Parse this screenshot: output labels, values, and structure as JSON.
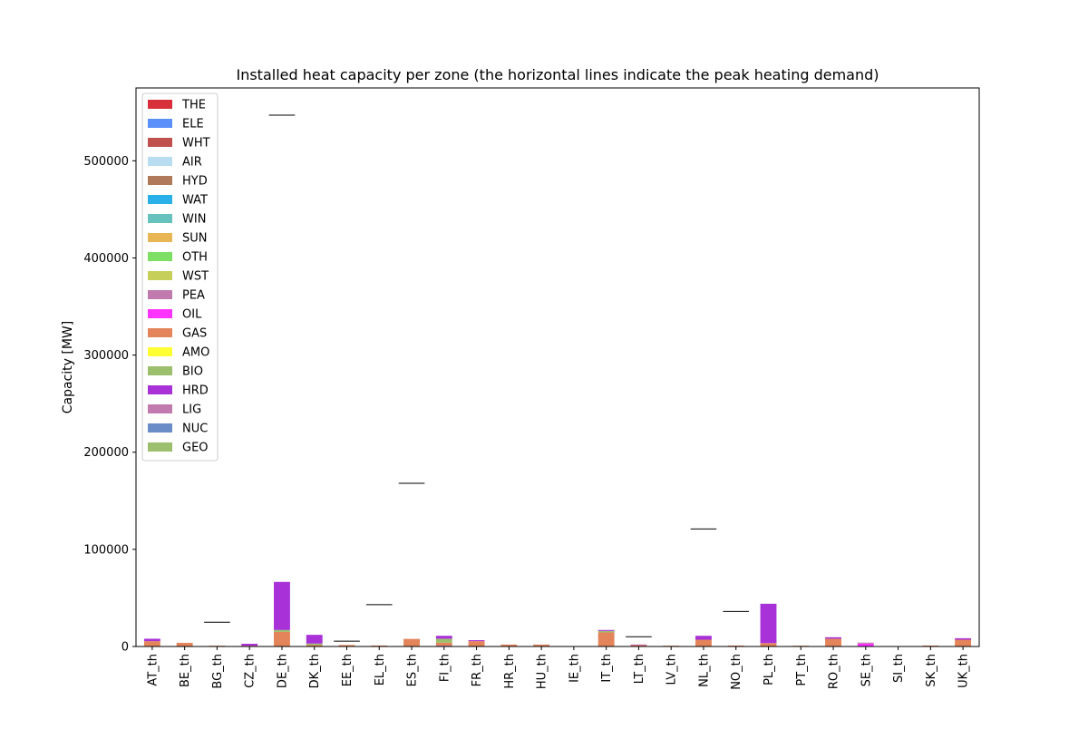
{
  "chart_data": {
    "type": "bar",
    "stacked": true,
    "title": "Installed heat capacity per zone (the horizontal lines indicate the peak heating demand)",
    "xlabel": "",
    "ylabel": "Capacity [MW]",
    "ylim": [
      0,
      575000
    ],
    "yticks": [
      0,
      100000,
      200000,
      300000,
      400000,
      500000
    ],
    "ytick_labels": [
      "0",
      "100000",
      "200000",
      "300000",
      "400000",
      "500000"
    ],
    "grid": false,
    "legend_position": "top-left",
    "categories": [
      "AT_th",
      "BE_th",
      "BG_th",
      "CZ_th",
      "DE_th",
      "DK_th",
      "EE_th",
      "EL_th",
      "ES_th",
      "FI_th",
      "FR_th",
      "HR_th",
      "HU_th",
      "IE_th",
      "IT_th",
      "LT_th",
      "LV_th",
      "NL_th",
      "NO_th",
      "PL_th",
      "PT_th",
      "RO_th",
      "SE_th",
      "SI_th",
      "SK_th",
      "UK_th"
    ],
    "series": [
      {
        "name": "THE",
        "color": "#d7303a",
        "values": [
          0,
          0,
          0,
          0,
          0,
          0,
          0,
          0,
          0,
          0,
          0,
          0,
          0,
          0,
          0,
          0,
          0,
          0,
          0,
          0,
          0,
          0,
          0,
          0,
          0,
          0
        ]
      },
      {
        "name": "ELE",
        "color": "#5b8ff9",
        "values": [
          0,
          0,
          0,
          0,
          0,
          0,
          0,
          0,
          0,
          0,
          0,
          0,
          0,
          0,
          0,
          0,
          0,
          0,
          0,
          0,
          0,
          0,
          0,
          0,
          0,
          0
        ]
      },
      {
        "name": "WHT",
        "color": "#c0504d",
        "values": [
          0,
          0,
          0,
          0,
          0,
          0,
          0,
          0,
          0,
          0,
          0,
          0,
          0,
          0,
          0,
          0,
          0,
          0,
          0,
          0,
          0,
          0,
          0,
          0,
          0,
          0
        ]
      },
      {
        "name": "AIR",
        "color": "#b8dcf0",
        "values": [
          0,
          0,
          0,
          0,
          0,
          0,
          0,
          0,
          0,
          0,
          0,
          0,
          0,
          0,
          0,
          0,
          0,
          0,
          0,
          0,
          0,
          0,
          0,
          0,
          0,
          0
        ]
      },
      {
        "name": "HYD",
        "color": "#b07a5a",
        "values": [
          0,
          0,
          0,
          0,
          0,
          0,
          0,
          0,
          0,
          0,
          0,
          0,
          0,
          0,
          0,
          0,
          0,
          0,
          0,
          0,
          0,
          0,
          0,
          0,
          0,
          0
        ]
      },
      {
        "name": "WAT",
        "color": "#2ab0e8",
        "values": [
          0,
          0,
          0,
          0,
          0,
          0,
          0,
          0,
          0,
          0,
          0,
          0,
          0,
          0,
          0,
          0,
          0,
          0,
          0,
          0,
          0,
          0,
          0,
          0,
          0,
          0
        ]
      },
      {
        "name": "WIN",
        "color": "#67c2bd",
        "values": [
          0,
          0,
          0,
          0,
          0,
          0,
          0,
          0,
          0,
          0,
          0,
          0,
          0,
          0,
          0,
          0,
          0,
          0,
          0,
          0,
          0,
          0,
          0,
          0,
          0,
          0
        ]
      },
      {
        "name": "SUN",
        "color": "#e8b654",
        "values": [
          0,
          0,
          0,
          0,
          0,
          0,
          0,
          0,
          0,
          0,
          0,
          0,
          0,
          0,
          0,
          0,
          0,
          0,
          0,
          0,
          0,
          0,
          0,
          0,
          0,
          0
        ]
      },
      {
        "name": "OTH",
        "color": "#7ddf64",
        "values": [
          0,
          0,
          0,
          0,
          0,
          0,
          0,
          0,
          0,
          0,
          0,
          0,
          0,
          0,
          0,
          0,
          0,
          0,
          0,
          0,
          0,
          0,
          0,
          0,
          0,
          0
        ]
      },
      {
        "name": "WST",
        "color": "#c6cf5a",
        "values": [
          0,
          0,
          0,
          0,
          0,
          0,
          0,
          0,
          0,
          0,
          0,
          0,
          0,
          0,
          0,
          0,
          0,
          0,
          0,
          0,
          0,
          0,
          0,
          0,
          0,
          0
        ]
      },
      {
        "name": "PEA",
        "color": "#c17aae",
        "values": [
          0,
          0,
          0,
          0,
          0,
          0,
          0,
          0,
          0,
          1000,
          0,
          0,
          0,
          0,
          0,
          0,
          0,
          0,
          0,
          0,
          0,
          0,
          0,
          0,
          0,
          0
        ]
      },
      {
        "name": "OIL",
        "color": "#ff33ff",
        "values": [
          0,
          0,
          0,
          0,
          0,
          0,
          0,
          0,
          0,
          0,
          0,
          0,
          0,
          0,
          0,
          0,
          0,
          0,
          0,
          0,
          0,
          0,
          3000,
          0,
          0,
          0
        ]
      },
      {
        "name": "GAS",
        "color": "#e3845a",
        "values": [
          5500,
          3800,
          800,
          800,
          15000,
          1500,
          1500,
          1000,
          7800,
          3000,
          5500,
          2000,
          2000,
          300,
          14500,
          1500,
          800,
          7000,
          1000,
          3500,
          800,
          8000,
          0,
          200,
          1000,
          7000
        ]
      },
      {
        "name": "AMO",
        "color": "#ffff33",
        "values": [
          0,
          0,
          0,
          0,
          0,
          0,
          0,
          0,
          0,
          0,
          0,
          0,
          0,
          0,
          0,
          0,
          0,
          0,
          0,
          0,
          0,
          0,
          0,
          0,
          0,
          0
        ]
      },
      {
        "name": "BIO",
        "color": "#9bbf6d",
        "values": [
          0,
          0,
          0,
          0,
          2000,
          1500,
          0,
          0,
          0,
          4000,
          0,
          0,
          0,
          0,
          1500,
          0,
          0,
          0,
          0,
          0,
          0,
          0,
          0,
          0,
          0,
          0
        ]
      },
      {
        "name": "HRD",
        "color": "#a832d8",
        "values": [
          2500,
          0,
          0,
          2000,
          49500,
          9000,
          0,
          0,
          0,
          3000,
          1000,
          0,
          0,
          0,
          1000,
          500,
          0,
          4000,
          0,
          40500,
          0,
          1500,
          0,
          0,
          0,
          1500
        ]
      },
      {
        "name": "LIG",
        "color": "#c17aae",
        "values": [
          0,
          0,
          0,
          0,
          0,
          0,
          0,
          0,
          0,
          0,
          0,
          0,
          0,
          0,
          0,
          0,
          0,
          0,
          0,
          0,
          0,
          0,
          1000,
          0,
          0,
          0
        ]
      },
      {
        "name": "NUC",
        "color": "#6a8cc7",
        "values": [
          0,
          0,
          0,
          0,
          0,
          0,
          0,
          0,
          0,
          0,
          0,
          0,
          0,
          0,
          0,
          0,
          0,
          0,
          0,
          0,
          0,
          0,
          0,
          0,
          0,
          0
        ]
      },
      {
        "name": "GEO",
        "color": "#9bbf6d",
        "values": [
          0,
          0,
          0,
          0,
          0,
          0,
          0,
          0,
          0,
          0,
          0,
          0,
          0,
          0,
          0,
          0,
          0,
          0,
          0,
          0,
          0,
          0,
          0,
          0,
          0,
          0
        ]
      }
    ],
    "peak_demand": [
      {
        "category": "BG_th",
        "value": 25000
      },
      {
        "category": "DE_th",
        "value": 547000
      },
      {
        "category": "EE_th",
        "value": 5500
      },
      {
        "category": "EL_th",
        "value": 43000
      },
      {
        "category": "ES_th",
        "value": 168000
      },
      {
        "category": "LT_th",
        "value": 10000
      },
      {
        "category": "NL_th",
        "value": 121000
      },
      {
        "category": "NO_th",
        "value": 36000
      }
    ]
  }
}
